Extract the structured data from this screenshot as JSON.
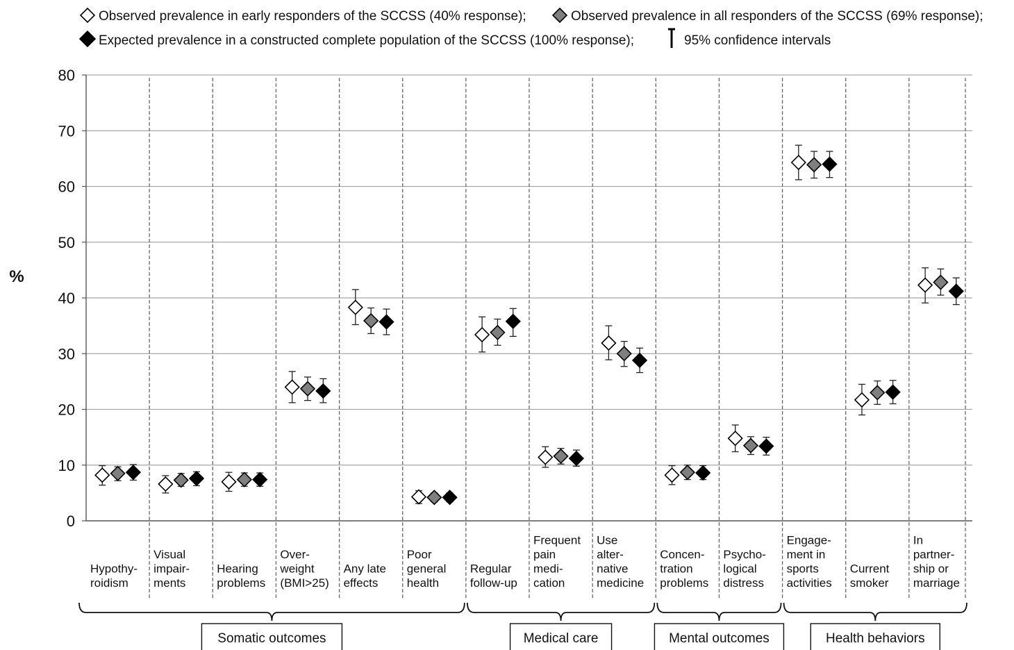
{
  "chart_data": {
    "type": "scatter",
    "ylabel": "%",
    "ylim": [
      0,
      80
    ],
    "yticks": [
      "0",
      "10",
      "20",
      "30",
      "40",
      "50",
      "60",
      "70",
      "80"
    ],
    "grid": true,
    "legend_position": "top",
    "legend": {
      "series_labels": [
        "Observed prevalence in early responders of the SCCSS (40% response);",
        "Observed prevalence in all responders of the SCCSS (69% response);",
        "Expected prevalence in a constructed complete population of the SCCSS (100% response);"
      ],
      "ci_label": "95% confidence intervals"
    },
    "colors": {
      "early": "#ffffff",
      "all": "#7f7f7f",
      "expected": "#000000",
      "grid": "#a6a6a6"
    },
    "categories": [
      {
        "lines": [
          "Hypothy-",
          "roidism"
        ]
      },
      {
        "lines": [
          "Visual",
          "impair-",
          "ments"
        ]
      },
      {
        "lines": [
          "Hearing",
          "problems"
        ]
      },
      {
        "lines": [
          "Over-",
          "weight",
          "(BMI>25)"
        ]
      },
      {
        "lines": [
          "Any late",
          "effects"
        ]
      },
      {
        "lines": [
          "Poor",
          "general",
          "health"
        ]
      },
      {
        "lines": [
          "Regular",
          "follow-up"
        ]
      },
      {
        "lines": [
          "Frequent",
          "pain",
          "medi-",
          "cation"
        ]
      },
      {
        "lines": [
          "Use",
          "alter-",
          "native",
          "medicine"
        ]
      },
      {
        "lines": [
          "Concen-",
          "tration",
          "problems"
        ]
      },
      {
        "lines": [
          "Psycho-",
          "logical",
          "distress"
        ]
      },
      {
        "lines": [
          "Engage-",
          "ment in",
          "sports",
          "activities"
        ]
      },
      {
        "lines": [
          "Current",
          "smoker"
        ]
      },
      {
        "lines": [
          "In",
          "partner-",
          "ship or",
          "marriage"
        ]
      }
    ],
    "groups": [
      {
        "label": "Somatic outcomes",
        "start": 0,
        "end": 5
      },
      {
        "label": "Medical care",
        "start": 6,
        "end": 8
      },
      {
        "label": "Mental outcomes",
        "start": 9,
        "end": 10
      },
      {
        "label": "Health behaviors",
        "start": 11,
        "end": 13
      }
    ],
    "series": [
      {
        "key": "early",
        "values": [
          8.2,
          6.6,
          7.0,
          24.0,
          38.3,
          4.3,
          33.4,
          11.4,
          31.9,
          8.2,
          14.8,
          64.3,
          21.7,
          42.3
        ],
        "ci_low": [
          6.4,
          5.0,
          5.3,
          21.2,
          35.2,
          3.1,
          30.3,
          9.6,
          28.9,
          6.5,
          12.4,
          61.2,
          19.0,
          39.1
        ],
        "ci_high": [
          9.9,
          8.1,
          8.7,
          26.8,
          41.5,
          5.4,
          36.6,
          13.3,
          35.0,
          9.9,
          17.2,
          67.4,
          24.5,
          45.4
        ]
      },
      {
        "key": "all",
        "values": [
          8.5,
          7.3,
          7.4,
          23.7,
          35.9,
          4.2,
          33.8,
          11.6,
          30.0,
          8.7,
          13.5,
          63.9,
          23.0,
          42.8
        ],
        "ci_low": [
          7.2,
          6.2,
          6.2,
          21.6,
          33.6,
          3.4,
          31.5,
          10.2,
          27.7,
          7.4,
          11.9,
          61.5,
          20.9,
          40.5
        ],
        "ci_high": [
          9.7,
          8.5,
          8.6,
          25.8,
          38.2,
          5.0,
          36.2,
          13.0,
          32.2,
          10.0,
          15.1,
          66.3,
          25.1,
          45.2
        ]
      },
      {
        "key": "expected",
        "values": [
          8.7,
          7.6,
          7.4,
          23.3,
          35.7,
          4.2,
          35.8,
          11.2,
          28.8,
          8.6,
          13.4,
          64.0,
          23.1,
          41.2
        ],
        "ci_low": [
          7.3,
          6.3,
          6.2,
          21.2,
          33.4,
          3.4,
          33.1,
          9.8,
          26.6,
          7.4,
          11.8,
          61.6,
          21.0,
          38.8
        ],
        "ci_high": [
          10.1,
          8.8,
          8.6,
          25.5,
          38.0,
          5.0,
          38.1,
          12.7,
          31.0,
          9.9,
          15.0,
          66.3,
          25.2,
          43.6
        ]
      }
    ]
  }
}
